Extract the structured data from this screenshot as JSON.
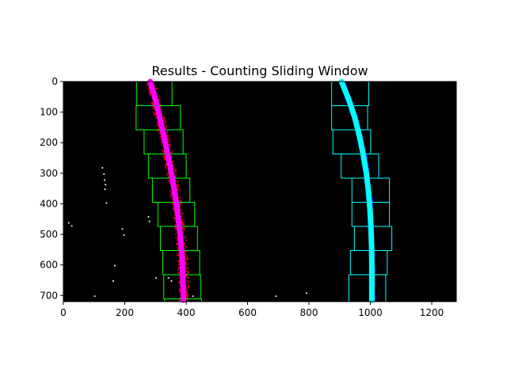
{
  "chart_data": {
    "type": "scatter",
    "title": "Results - Counting Sliding Window",
    "xlabel": "",
    "ylabel": "",
    "xlim": [
      0,
      1280
    ],
    "ylim": [
      720,
      0
    ],
    "xticks": [
      0,
      200,
      400,
      600,
      800,
      1000,
      1200
    ],
    "yticks": [
      0,
      100,
      200,
      300,
      400,
      500,
      600,
      700
    ],
    "background_color": "#000000",
    "grid": false,
    "legend": "none",
    "left_windows": {
      "color": "#00ff00",
      "rects": [
        {
          "x0": 238,
          "x1": 354,
          "y0": 0,
          "y1": 79
        },
        {
          "x0": 237,
          "x1": 381,
          "y0": 79,
          "y1": 158
        },
        {
          "x0": 263,
          "x1": 390,
          "y0": 158,
          "y1": 237
        },
        {
          "x0": 277,
          "x1": 400,
          "y0": 237,
          "y1": 316
        },
        {
          "x0": 290,
          "x1": 412,
          "y0": 316,
          "y1": 395
        },
        {
          "x0": 308,
          "x1": 428,
          "y0": 395,
          "y1": 474
        },
        {
          "x0": 316,
          "x1": 437,
          "y0": 474,
          "y1": 553
        },
        {
          "x0": 324,
          "x1": 444,
          "y0": 553,
          "y1": 632
        },
        {
          "x0": 327,
          "x1": 447,
          "y0": 632,
          "y1": 711
        },
        {
          "x0": 330,
          "x1": 450,
          "y0": 711,
          "y1": 720
        }
      ]
    },
    "right_windows": {
      "color": "#00ffff",
      "rects": [
        {
          "x0": 874,
          "x1": 995,
          "y0": 0,
          "y1": 79
        },
        {
          "x0": 874,
          "x1": 991,
          "y0": 79,
          "y1": 158
        },
        {
          "x0": 878,
          "x1": 1001,
          "y0": 158,
          "y1": 237
        },
        {
          "x0": 905,
          "x1": 1027,
          "y0": 237,
          "y1": 316
        },
        {
          "x0": 940,
          "x1": 1062,
          "y0": 316,
          "y1": 395
        },
        {
          "x0": 940,
          "x1": 1062,
          "y0": 395,
          "y1": 474
        },
        {
          "x0": 948,
          "x1": 1070,
          "y0": 474,
          "y1": 553
        },
        {
          "x0": 935,
          "x1": 1055,
          "y0": 553,
          "y1": 632
        },
        {
          "x0": 930,
          "x1": 1050,
          "y0": 632,
          "y1": 720
        }
      ]
    },
    "left_fit": {
      "color": "#ff00ff",
      "points": [
        [
          283,
          0
        ],
        [
          300,
          60
        ],
        [
          314,
          120
        ],
        [
          328,
          180
        ],
        [
          340,
          240
        ],
        [
          352,
          300
        ],
        [
          362,
          360
        ],
        [
          371,
          420
        ],
        [
          378,
          480
        ],
        [
          384,
          540
        ],
        [
          388,
          600
        ],
        [
          390,
          660
        ],
        [
          391,
          715
        ]
      ]
    },
    "right_fit": {
      "color": "#00ffff",
      "points": [
        [
          906,
          0
        ],
        [
          930,
          60
        ],
        [
          950,
          120
        ],
        [
          965,
          180
        ],
        [
          977,
          240
        ],
        [
          987,
          300
        ],
        [
          994,
          360
        ],
        [
          999,
          420
        ],
        [
          1002,
          480
        ],
        [
          1004,
          540
        ],
        [
          1005,
          600
        ],
        [
          1005,
          660
        ],
        [
          1005,
          715
        ]
      ]
    },
    "left_pixels_color": "#ff0000",
    "right_pixels_color": "#0000ff",
    "noise_pixels_color": "#ffffff",
    "noise_pixels": [
      [
        125,
        280
      ],
      [
        130,
        300
      ],
      [
        132,
        320
      ],
      [
        135,
        335
      ],
      [
        133,
        350
      ],
      [
        138,
        395
      ],
      [
        15,
        460
      ],
      [
        25,
        470
      ],
      [
        275,
        440
      ],
      [
        278,
        455
      ],
      [
        190,
        480
      ],
      [
        195,
        500
      ],
      [
        165,
        600
      ],
      [
        160,
        650
      ],
      [
        100,
        700
      ],
      [
        140,
        720
      ],
      [
        300,
        640
      ],
      [
        340,
        640
      ],
      [
        350,
        650
      ],
      [
        420,
        700
      ],
      [
        460,
        720
      ],
      [
        620,
        720
      ],
      [
        690,
        700
      ],
      [
        790,
        690
      ]
    ]
  }
}
